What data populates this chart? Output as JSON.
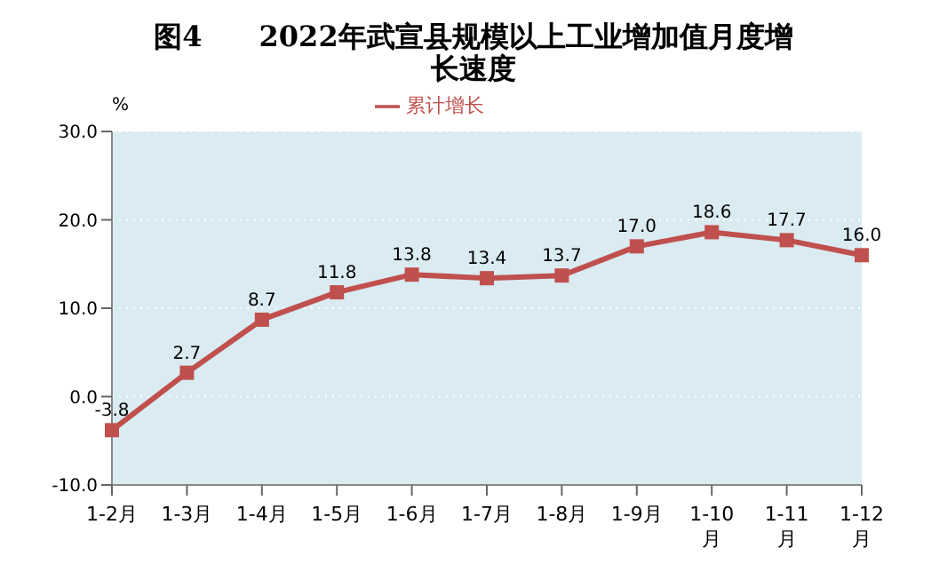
{
  "chart_data": {
    "type": "line",
    "title": "图4　　2022年武宣县规模以上工业增加值月度增长速度",
    "ylabel": "%",
    "categories": [
      "1-2月",
      "1-3月",
      "1-4月",
      "1-5月",
      "1-6月",
      "1-7月",
      "1-8月",
      "1-9月",
      "1-10月",
      "1-11月",
      "1-12月"
    ],
    "series": [
      {
        "name": "累计增长",
        "color": "#c0504d",
        "values": [
          -3.8,
          2.7,
          8.7,
          11.8,
          13.8,
          13.4,
          13.7,
          17.0,
          18.6,
          17.7,
          16.0
        ],
        "value_labels": [
          "-3.8",
          "2.7",
          "8.7",
          "11.8",
          "13.8",
          "13.4",
          "13.7",
          "17.0",
          "18.6",
          "17.7",
          "16.0"
        ]
      }
    ],
    "ylim": [
      -10,
      30
    ],
    "yticks": [
      {
        "value": -10,
        "label": "-10.0"
      },
      {
        "value": 0,
        "label": "0.0"
      },
      {
        "value": 10,
        "label": "10.0"
      },
      {
        "value": 20,
        "label": "20.0"
      },
      {
        "value": 30,
        "label": "30.0"
      }
    ],
    "grid": "y",
    "legend": "top",
    "marker": "square",
    "line_style": "solid"
  }
}
